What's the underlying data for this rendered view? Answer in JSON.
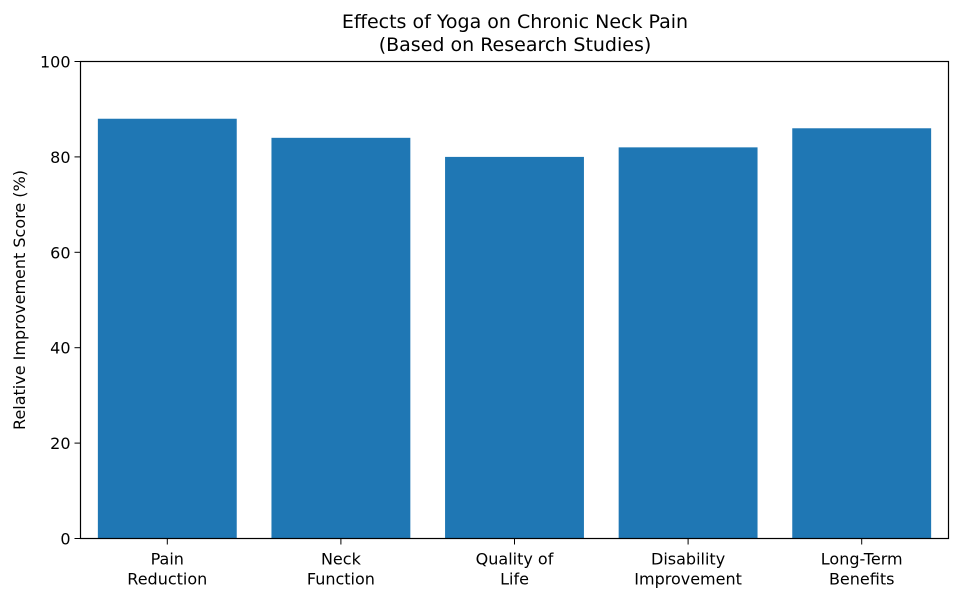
{
  "chart_data": {
    "type": "bar",
    "title": [
      "Effects of Yoga on Chronic Neck Pain",
      "(Based on Research Studies)"
    ],
    "xlabel": "",
    "ylabel": "Relative Improvement Score (%)",
    "categories": [
      [
        "Pain",
        "Reduction"
      ],
      [
        "Neck",
        "Function"
      ],
      [
        "Quality of",
        "Life"
      ],
      [
        "Disability",
        "Improvement"
      ],
      [
        "Long-Term",
        "Benefits"
      ]
    ],
    "values": [
      88,
      84,
      80,
      82,
      86
    ],
    "ylim": [
      0,
      100
    ],
    "yticks": [
      0,
      20,
      40,
      60,
      80,
      100
    ],
    "bar_color": "#1f77b4",
    "grid": false,
    "legend": "none"
  }
}
